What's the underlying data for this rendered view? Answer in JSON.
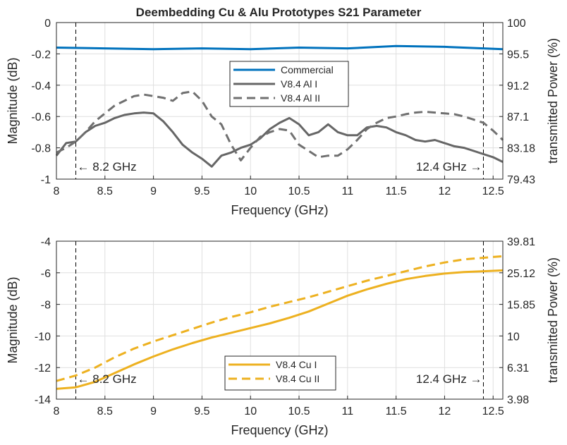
{
  "figure": {
    "title": "Deembedding Cu & Alu Prototypes S21 Parameter"
  },
  "colors": {
    "commercial": "#0072BD",
    "al1": "#666666",
    "al2": "#707070",
    "cu": "#EDB120",
    "grid": "#dfdfdf",
    "axis": "#262626"
  },
  "chart_data": [
    {
      "type": "line",
      "title": "Deembedding Cu & Alu Prototypes S21 Parameter",
      "xlabel": "Frequency (GHz)",
      "ylabel": "Magnitude (dB)",
      "ylabel_right": "transmitted Power (%)",
      "xlim": [
        8,
        12.6
      ],
      "ylim": [
        -1,
        0
      ],
      "xticks": [
        8,
        8.5,
        9,
        9.5,
        10,
        10.5,
        11,
        11.5,
        12,
        12.5
      ],
      "xtick_labels": [
        "8",
        "8.5",
        "9",
        "9.5",
        "10",
        "10.5",
        "11",
        "11.5",
        "12",
        "12.5"
      ],
      "yticks": [
        -1,
        -0.8,
        -0.6,
        -0.4,
        -0.2,
        0
      ],
      "ytick_labels": [
        "-1",
        "-0.8",
        "-0.6",
        "-0.4",
        "-0.2",
        "0"
      ],
      "right_ticks": [
        "79.43",
        "83.18",
        "87.1",
        "91.2",
        "95.5",
        "100"
      ],
      "grid": true,
      "legend_position": "center",
      "vlines": [
        8.2,
        12.4
      ],
      "annotations": [
        {
          "text": "← 8.2 GHz",
          "x": 8.2,
          "y": -0.92
        },
        {
          "text": "12.4 GHz →",
          "x": 12.4,
          "y": -0.92
        }
      ],
      "series": [
        {
          "name": "Commercial",
          "style": "solid",
          "x": [
            8,
            8.5,
            9,
            9.5,
            10,
            10.5,
            11,
            11.5,
            12,
            12.4,
            12.6
          ],
          "y": [
            -0.16,
            -0.165,
            -0.17,
            -0.165,
            -0.17,
            -0.16,
            -0.165,
            -0.15,
            -0.155,
            -0.165,
            -0.17
          ]
        },
        {
          "name": "V8.4 Al I",
          "style": "solid",
          "x": [
            8,
            8.1,
            8.2,
            8.3,
            8.4,
            8.5,
            8.6,
            8.7,
            8.8,
            8.9,
            9.0,
            9.1,
            9.2,
            9.3,
            9.4,
            9.5,
            9.6,
            9.7,
            9.8,
            9.9,
            10.0,
            10.1,
            10.2,
            10.3,
            10.4,
            10.5,
            10.6,
            10.7,
            10.8,
            10.9,
            11.0,
            11.1,
            11.2,
            11.3,
            11.4,
            11.5,
            11.6,
            11.7,
            11.8,
            11.9,
            12.0,
            12.1,
            12.2,
            12.3,
            12.4,
            12.5,
            12.6
          ],
          "y": [
            -0.85,
            -0.77,
            -0.76,
            -0.7,
            -0.66,
            -0.64,
            -0.61,
            -0.59,
            -0.58,
            -0.575,
            -0.58,
            -0.63,
            -0.7,
            -0.78,
            -0.83,
            -0.87,
            -0.92,
            -0.85,
            -0.83,
            -0.8,
            -0.78,
            -0.74,
            -0.68,
            -0.64,
            -0.61,
            -0.65,
            -0.72,
            -0.7,
            -0.65,
            -0.7,
            -0.72,
            -0.72,
            -0.67,
            -0.66,
            -0.67,
            -0.7,
            -0.72,
            -0.75,
            -0.76,
            -0.75,
            -0.77,
            -0.79,
            -0.8,
            -0.82,
            -0.84,
            -0.86,
            -0.89
          ]
        },
        {
          "name": "V8.4 Al II",
          "style": "dashed",
          "x": [
            8,
            8.1,
            8.2,
            8.3,
            8.4,
            8.5,
            8.6,
            8.7,
            8.8,
            8.9,
            9.0,
            9.1,
            9.2,
            9.3,
            9.4,
            9.5,
            9.6,
            9.7,
            9.8,
            9.9,
            10.0,
            10.1,
            10.2,
            10.3,
            10.4,
            10.5,
            10.6,
            10.7,
            10.8,
            10.9,
            11.0,
            11.1,
            11.2,
            11.3,
            11.4,
            11.5,
            11.6,
            11.7,
            11.8,
            11.9,
            12.0,
            12.1,
            12.2,
            12.3,
            12.4,
            12.5,
            12.6
          ],
          "y": [
            -0.83,
            -0.8,
            -0.76,
            -0.7,
            -0.63,
            -0.58,
            -0.53,
            -0.5,
            -0.47,
            -0.46,
            -0.47,
            -0.48,
            -0.5,
            -0.45,
            -0.44,
            -0.5,
            -0.6,
            -0.65,
            -0.78,
            -0.88,
            -0.8,
            -0.73,
            -0.7,
            -0.68,
            -0.69,
            -0.78,
            -0.82,
            -0.86,
            -0.85,
            -0.85,
            -0.81,
            -0.75,
            -0.68,
            -0.64,
            -0.61,
            -0.6,
            -0.585,
            -0.575,
            -0.57,
            -0.575,
            -0.58,
            -0.585,
            -0.6,
            -0.62,
            -0.64,
            -0.69,
            -0.75
          ]
        }
      ]
    },
    {
      "type": "line",
      "xlabel": "Frequency (GHz)",
      "ylabel": "Magnitude (dB)",
      "ylabel_right": "transmitted Power (%)",
      "xlim": [
        8,
        12.6
      ],
      "ylim": [
        -14,
        -4
      ],
      "xticks": [
        8,
        8.5,
        9,
        9.5,
        10,
        10.5,
        11,
        11.5,
        12,
        12.5
      ],
      "xtick_labels": [
        "8",
        "8.5",
        "9",
        "9.5",
        "10",
        "10.5",
        "11",
        "11.5",
        "12",
        "12.5"
      ],
      "yticks": [
        -14,
        -12,
        -10,
        -8,
        -6,
        -4
      ],
      "ytick_labels": [
        "-14",
        "-12",
        "-10",
        "-8",
        "-6",
        "-4"
      ],
      "right_ticks": [
        "3.98",
        "6.31",
        "10",
        "15.85",
        "25.12",
        "39.81"
      ],
      "grid": true,
      "legend_position": "bottom-center",
      "vlines": [
        8.2,
        12.4
      ],
      "annotations": [
        {
          "text": "← 8.2 GHz",
          "x": 8.2,
          "y": -12.7
        },
        {
          "text": "12.4 GHz →",
          "x": 12.4,
          "y": -12.7
        }
      ],
      "series": [
        {
          "name": "V8.4 Cu I",
          "style": "solid",
          "x": [
            8,
            8.2,
            8.4,
            8.6,
            8.8,
            9.0,
            9.2,
            9.4,
            9.6,
            9.8,
            10.0,
            10.2,
            10.4,
            10.6,
            10.8,
            11.0,
            11.2,
            11.4,
            11.6,
            11.8,
            12.0,
            12.2,
            12.4,
            12.6
          ],
          "y": [
            -13.35,
            -13.25,
            -12.9,
            -12.35,
            -11.8,
            -11.3,
            -10.85,
            -10.45,
            -10.1,
            -9.8,
            -9.5,
            -9.2,
            -8.85,
            -8.45,
            -7.95,
            -7.45,
            -7.05,
            -6.7,
            -6.4,
            -6.2,
            -6.05,
            -5.95,
            -5.9,
            -5.85
          ]
        },
        {
          "name": "V8.4 Cu II",
          "style": "dashed",
          "x": [
            8,
            8.2,
            8.4,
            8.6,
            8.8,
            9.0,
            9.2,
            9.4,
            9.6,
            9.8,
            10.0,
            10.2,
            10.4,
            10.6,
            10.8,
            11.0,
            11.2,
            11.4,
            11.6,
            11.8,
            12.0,
            12.2,
            12.4,
            12.6
          ],
          "y": [
            -12.85,
            -12.5,
            -12.0,
            -11.35,
            -10.8,
            -10.35,
            -9.95,
            -9.55,
            -9.15,
            -8.8,
            -8.5,
            -8.15,
            -7.85,
            -7.55,
            -7.2,
            -6.85,
            -6.5,
            -6.2,
            -5.9,
            -5.6,
            -5.35,
            -5.15,
            -5.05,
            -4.95
          ]
        }
      ]
    }
  ]
}
